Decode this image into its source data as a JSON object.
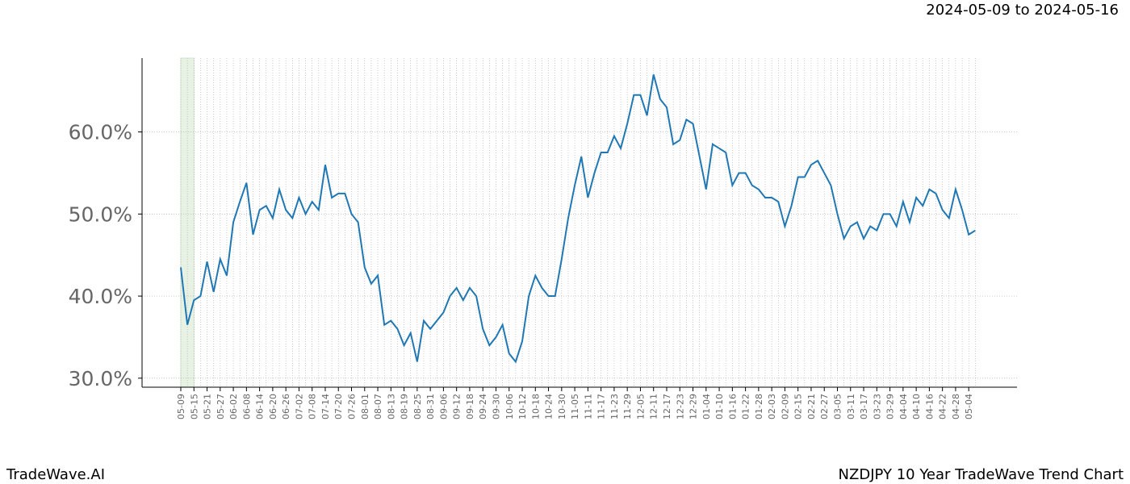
{
  "chart_data": {
    "type": "line",
    "title": "NZDJPY 10 Year TradeWave Trend Chart",
    "subtitle": "2024-05-09 to 2024-05-16",
    "brand": "TradeWave.AI",
    "categories": [
      "05-09",
      null,
      "05-15",
      null,
      "05-21",
      null,
      "05-27",
      null,
      "06-02",
      null,
      "06-08",
      null,
      "06-14",
      null,
      "06-20",
      null,
      "06-26",
      null,
      "07-02",
      null,
      "07-08",
      null,
      "07-14",
      null,
      "07-20",
      null,
      "07-26",
      null,
      "08-01",
      null,
      "08-07",
      null,
      "08-13",
      null,
      "08-19",
      null,
      "08-25",
      null,
      "08-31",
      null,
      "09-06",
      null,
      "09-12",
      null,
      "09-18",
      null,
      "09-24",
      null,
      "09-30",
      null,
      "10-06",
      null,
      "10-12",
      null,
      "10-18",
      null,
      "10-24",
      null,
      "10-30",
      null,
      "11-05",
      null,
      "11-11",
      null,
      "11-17",
      null,
      "11-23",
      null,
      "11-29",
      null,
      "12-05",
      null,
      "12-11",
      null,
      "12-17",
      null,
      "12-23",
      null,
      "12-29",
      null,
      "01-04",
      null,
      "01-10",
      null,
      "01-16",
      null,
      "01-22",
      null,
      "01-28",
      null,
      "02-03",
      null,
      "02-09",
      null,
      "02-15",
      null,
      "02-21",
      null,
      "02-27",
      null,
      "03-05",
      null,
      "03-11",
      null,
      "03-17",
      null,
      "03-23",
      null,
      "03-29",
      null,
      "04-04",
      null,
      "04-10",
      null,
      "04-16",
      null,
      "04-22",
      null,
      "04-28",
      null,
      "05-04",
      null
    ],
    "series": [
      {
        "color": "#1f77b4",
        "values": [
          43.5,
          36.5,
          39.5,
          40,
          44.2,
          40.5,
          44.5,
          42.5,
          49,
          51.5,
          53.8,
          47.5,
          50.5,
          51,
          49.5,
          53,
          50.5,
          49.5,
          52,
          50,
          51.5,
          50.5,
          56,
          52,
          52.5,
          52.5,
          50,
          49,
          43.5,
          41.5,
          42.5,
          36.5,
          37,
          36,
          34,
          35.5,
          32,
          37,
          36,
          37,
          38,
          40,
          41,
          39.5,
          41,
          40,
          36,
          34,
          35,
          36.5,
          33,
          32,
          34.5,
          40,
          42.5,
          41,
          40,
          40,
          44.5,
          49.5,
          53.5,
          57,
          52,
          55,
          57.5,
          57.5,
          59.5,
          58,
          61,
          64.5,
          64.5,
          62,
          67,
          64,
          63,
          58.5,
          59,
          61.5,
          61,
          57,
          53,
          58.5,
          58,
          57.5,
          53.5,
          55,
          55,
          53.5,
          53,
          52,
          52,
          51.5,
          48.5,
          51,
          54.5,
          54.5,
          56,
          56.5,
          55,
          53.5,
          50,
          47,
          48.5,
          49,
          47,
          48.5,
          48,
          50,
          50,
          48.5,
          51.5,
          49,
          52,
          51,
          53,
          52.5,
          50.5,
          49.5,
          53,
          50.5,
          47.5,
          48
        ]
      }
    ],
    "ylim": [
      28.9,
      69.0
    ],
    "yticks": [
      {
        "value": 30,
        "label": "30.0%"
      },
      {
        "value": 40,
        "label": "40.0%"
      },
      {
        "value": 50,
        "label": "50.0%"
      },
      {
        "value": 60,
        "label": "60.0%"
      }
    ],
    "grid": true
  }
}
